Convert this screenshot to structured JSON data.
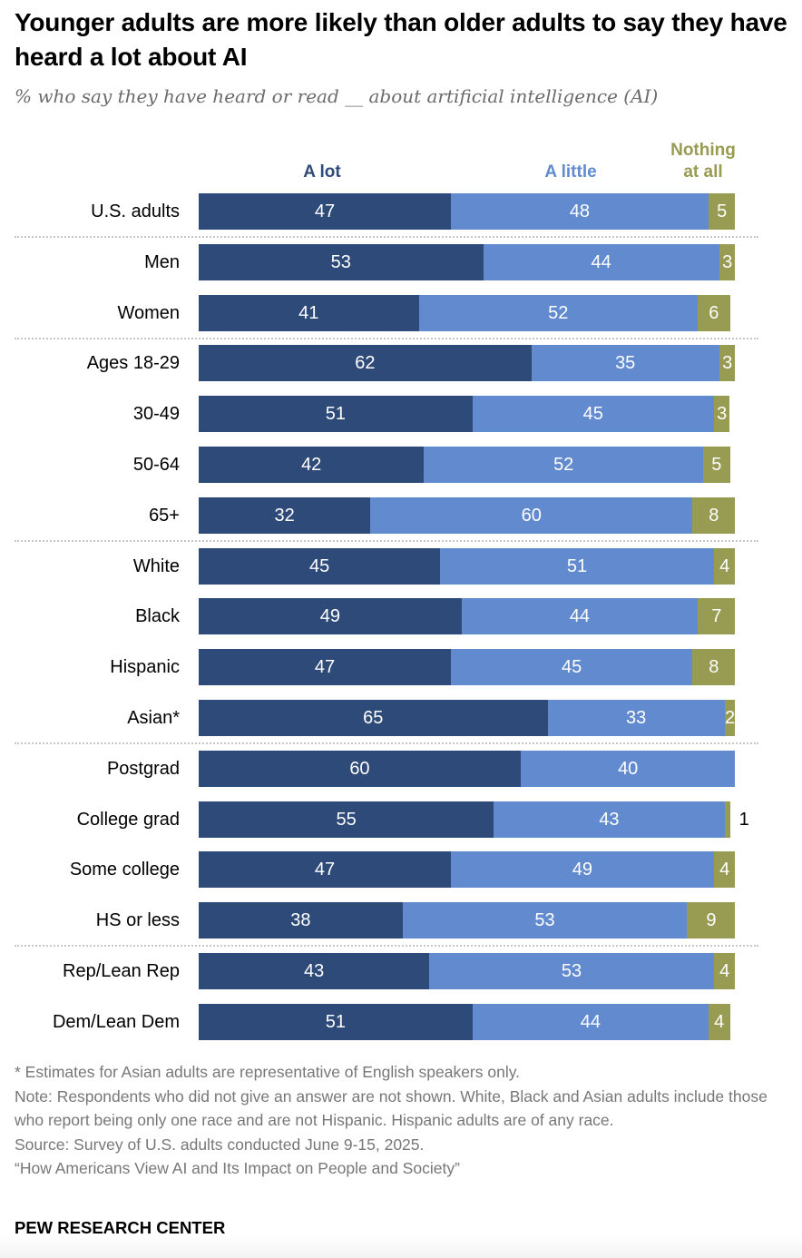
{
  "title": "Younger adults are more likely than older adults to say they have heard a lot about AI",
  "subtitle": "% who say they have heard or read __ about artificial intelligence (AI)",
  "colors": {
    "a_lot": "#2d4a78",
    "a_little": "#628bcf",
    "nothing": "#989b52"
  },
  "legend": {
    "a_lot": "A lot",
    "a_little": "A little",
    "nothing_line1": "Nothing",
    "nothing_line2": "at all"
  },
  "chart_data": {
    "type": "bar",
    "orientation": "horizontal",
    "stacked": true,
    "title": "Younger adults are more likely than older adults to say they have heard a lot about AI",
    "subtitle": "% who say they have heard or read __ about artificial intelligence (AI)",
    "xlim": [
      0,
      100
    ],
    "categories": [
      "U.S. adults",
      "Men",
      "Women",
      "Ages 18-29",
      "30-49",
      "50-64",
      "65+",
      "White",
      "Black",
      "Hispanic",
      "Asian*",
      "Postgrad",
      "College grad",
      "Some college",
      "HS or less",
      "Rep/Lean Rep",
      "Dem/Lean Dem"
    ],
    "groups_after_index": [
      0,
      2,
      6,
      10,
      14
    ],
    "series": [
      {
        "name": "A lot",
        "values": [
          47,
          53,
          41,
          62,
          51,
          42,
          32,
          45,
          49,
          47,
          65,
          60,
          55,
          47,
          38,
          43,
          51
        ]
      },
      {
        "name": "A little",
        "values": [
          48,
          44,
          52,
          35,
          45,
          52,
          60,
          51,
          44,
          45,
          33,
          40,
          43,
          49,
          53,
          53,
          44
        ]
      },
      {
        "name": "Nothing at all",
        "values": [
          5,
          3,
          6,
          3,
          3,
          5,
          8,
          4,
          7,
          8,
          2,
          0,
          1,
          4,
          9,
          4,
          4
        ]
      }
    ],
    "legend_position": "top",
    "grid": false
  },
  "notes": {
    "asterisk": "* Estimates for Asian adults are representative of English speakers only.",
    "note": "Note: Respondents who did not give an answer are not shown. White, Black and Asian adults include those who report being only one race and are not Hispanic. Hispanic adults are of any race.",
    "source": "Source: Survey of U.S. adults conducted June 9-15, 2025.",
    "report": "“How Americans View AI and Its Impact on People and Society”"
  },
  "brand": "PEW RESEARCH CENTER"
}
